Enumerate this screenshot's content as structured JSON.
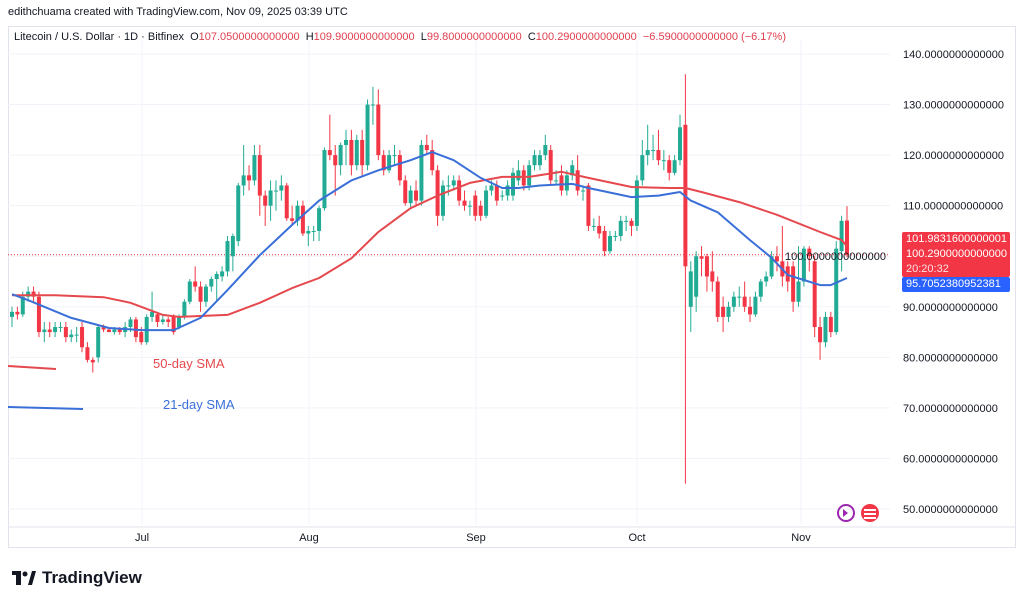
{
  "credit": "edithchuama created with TradingView.com, Nov 09, 2025 03:39 UTC",
  "legend": {
    "symbol": "Litecoin / U.S. Dollar · 1D · Bitfinex",
    "o_label": "O",
    "o": "107.0500000000000",
    "h_label": "H",
    "h": "109.9000000000000",
    "l_label": "L",
    "l": "99.8000000000000",
    "c_label": "C",
    "c": "100.2900000000000",
    "change": "−6.5900000000000 (−6.17%)"
  },
  "price_tags": {
    "sma50": "101.9831600000001",
    "last": "100.2900000000000",
    "countdown": "20:20:32",
    "sma21": "95.7052380952381"
  },
  "annotations": {
    "sma50": "50-day SMA",
    "sma21": "21-day SMA"
  },
  "footer": {
    "brand": "TradingView"
  },
  "colors": {
    "up": "#22ab94",
    "down": "#f23645",
    "sma50": "#e5484d",
    "sma21": "#3a6fd8",
    "grid": "#f0f3fa"
  },
  "chart_data": {
    "type": "candlestick",
    "ylim": [
      45,
      145
    ],
    "yticks": [
      "140.0000000000000",
      "130.0000000000000",
      "120.0000000000000",
      "110.0000000000000",
      "100.0000000000000",
      "90.0000000000000",
      "80.0000000000000",
      "70.0000000000000",
      "60.0000000000000",
      "50.0000000000000"
    ],
    "ytick_values": [
      140,
      130,
      120,
      110,
      100,
      90,
      80,
      70,
      60,
      50
    ],
    "xticks": [
      "Jul",
      "Aug",
      "Sep",
      "Oct",
      "Nov"
    ],
    "grid": true,
    "candles": [
      [
        88,
        90,
        86,
        89
      ],
      [
        89,
        90,
        87.5,
        88.5
      ],
      [
        88.5,
        93,
        88,
        92
      ],
      [
        92,
        94,
        91,
        93
      ],
      [
        93,
        94,
        91,
        92
      ],
      [
        92,
        93,
        84,
        85
      ],
      [
        85,
        87,
        83,
        85.5
      ],
      [
        85.5,
        87,
        84,
        85
      ],
      [
        85,
        87,
        84,
        86
      ],
      [
        86,
        87,
        85,
        86
      ],
      [
        86,
        87,
        83,
        84
      ],
      [
        84,
        85.5,
        83,
        84.5
      ],
      [
        84.5,
        86,
        83,
        84.5
      ],
      [
        86,
        87,
        81,
        82
      ],
      [
        82,
        83,
        79,
        79.5
      ],
      [
        79.5,
        80,
        77,
        79
      ],
      [
        80,
        86.5,
        79,
        86
      ],
      [
        86,
        86.5,
        85,
        85.5
      ],
      [
        85.5,
        86,
        85,
        85
      ],
      [
        85,
        86,
        84.5,
        85.5
      ],
      [
        85.5,
        86,
        84.5,
        85
      ],
      [
        85,
        87,
        84,
        86
      ],
      [
        86,
        88,
        85,
        87.5
      ],
      [
        87.5,
        88,
        83,
        84
      ],
      [
        85,
        86,
        82.5,
        83
      ],
      [
        83,
        88.5,
        82.5,
        88
      ],
      [
        88,
        93,
        87,
        89
      ],
      [
        88.5,
        89,
        86,
        87
      ],
      [
        87,
        88.5,
        86.5,
        87.5
      ],
      [
        87.5,
        88,
        86,
        87
      ],
      [
        88,
        88.5,
        84.5,
        85
      ],
      [
        86,
        88.5,
        85.5,
        88
      ],
      [
        88,
        91.5,
        87.5,
        91
      ],
      [
        91,
        95.5,
        90.5,
        95
      ],
      [
        95,
        98,
        93,
        94
      ],
      [
        94,
        95,
        89,
        91
      ],
      [
        91,
        94.5,
        90,
        94
      ],
      [
        94,
        96,
        93,
        95.5
      ],
      [
        95.5,
        97,
        91,
        96.5
      ],
      [
        96,
        98,
        95,
        97
      ],
      [
        97,
        104,
        96,
        103
      ],
      [
        100,
        104.5,
        97,
        104
      ],
      [
        103,
        114.5,
        102,
        114
      ],
      [
        114,
        122,
        112,
        116
      ],
      [
        116,
        118,
        113,
        115
      ],
      [
        115,
        122,
        114,
        120
      ],
      [
        120,
        122,
        108,
        112
      ],
      [
        112,
        113,
        106,
        110
      ],
      [
        110,
        115,
        107,
        113
      ],
      [
        113,
        115,
        109,
        113
      ],
      [
        113,
        116,
        111,
        114
      ],
      [
        114,
        114.5,
        107,
        107.5
      ],
      [
        107.5,
        110,
        106,
        107
      ],
      [
        107,
        111,
        106,
        110
      ],
      [
        110,
        111,
        104,
        104.5
      ],
      [
        104.5,
        106,
        102,
        105
      ],
      [
        105,
        106,
        103,
        105
      ],
      [
        105,
        110,
        103,
        109.5
      ],
      [
        109.5,
        121.5,
        109,
        121
      ],
      [
        121,
        128,
        119,
        120
      ],
      [
        120,
        122,
        112,
        118
      ],
      [
        118,
        122.5,
        116,
        122
      ],
      [
        122,
        125,
        118,
        123
      ],
      [
        123,
        125,
        116,
        118
      ],
      [
        118,
        124,
        117,
        123
      ],
      [
        123,
        125,
        116,
        118
      ],
      [
        118,
        131,
        117,
        130
      ],
      [
        130,
        133.5,
        126,
        130
      ],
      [
        130,
        133,
        119,
        120
      ],
      [
        120,
        121,
        116,
        117
      ],
      [
        117,
        121,
        116.5,
        120
      ],
      [
        120,
        122,
        118,
        120
      ],
      [
        120,
        121,
        114,
        115
      ],
      [
        115,
        116,
        110,
        110.5
      ],
      [
        110.5,
        114,
        109.5,
        113
      ],
      [
        113,
        115,
        110,
        111
      ],
      [
        111,
        123,
        110,
        122
      ],
      [
        122,
        124,
        120,
        121
      ],
      [
        121,
        123,
        116,
        117
      ],
      [
        117,
        118,
        106,
        108
      ],
      [
        108,
        115,
        107,
        114
      ],
      [
        114,
        116,
        112,
        114
      ],
      [
        114,
        116,
        113,
        115
      ],
      [
        115,
        116,
        110,
        111
      ],
      [
        111,
        113,
        109,
        110
      ],
      [
        110,
        111,
        108,
        110
      ],
      [
        112,
        113,
        107,
        108
      ],
      [
        110,
        111,
        107,
        108
      ],
      [
        108,
        114,
        107.5,
        113
      ],
      [
        113,
        115,
        112,
        114
      ],
      [
        114,
        115,
        110,
        111
      ],
      [
        112,
        113,
        111,
        112
      ],
      [
        112,
        115,
        111,
        114
      ],
      [
        112,
        117.5,
        111,
        116.5
      ],
      [
        115,
        119,
        114,
        117
      ],
      [
        117,
        118,
        113,
        114
      ],
      [
        114,
        119,
        113,
        118
      ],
      [
        118,
        121,
        117,
        120
      ],
      [
        118,
        121,
        117,
        120
      ],
      [
        120,
        124,
        119,
        122
      ],
      [
        121,
        122,
        114,
        115
      ],
      [
        115,
        117,
        114,
        115
      ],
      [
        116,
        118,
        112,
        113
      ],
      [
        113,
        117,
        112,
        116
      ],
      [
        116,
        119,
        115,
        118
      ],
      [
        117,
        120,
        112,
        113
      ],
      [
        113,
        114,
        111,
        113
      ],
      [
        114,
        114.5,
        105,
        106
      ],
      [
        106,
        107.5,
        105,
        106
      ],
      [
        106,
        108,
        103.5,
        104.5
      ],
      [
        105,
        106,
        100,
        101
      ],
      [
        101,
        105,
        100.5,
        104
      ],
      [
        104,
        105,
        103,
        104
      ],
      [
        104,
        108,
        103,
        107
      ],
      [
        107,
        108,
        105,
        107
      ],
      [
        107,
        107.5,
        104,
        106
      ],
      [
        106,
        116,
        105,
        115
      ],
      [
        115,
        123,
        114,
        120
      ],
      [
        120,
        126,
        118,
        121
      ],
      [
        121,
        124,
        119,
        121
      ],
      [
        121,
        125,
        118,
        119
      ],
      [
        119,
        121,
        117,
        119
      ],
      [
        119,
        120,
        115,
        116.5
      ],
      [
        116.5,
        120,
        116,
        119
      ],
      [
        119,
        128,
        118,
        125.5
      ],
      [
        126,
        136,
        55,
        98
      ],
      [
        90,
        99,
        85,
        97
      ],
      [
        92,
        101,
        89,
        100
      ],
      [
        100,
        102,
        96,
        99.5
      ],
      [
        100,
        100.5,
        93,
        96
      ],
      [
        97,
        101,
        93,
        95
      ],
      [
        95,
        96,
        87,
        88
      ],
      [
        90,
        92,
        85,
        88
      ],
      [
        88,
        91,
        87,
        90
      ],
      [
        90,
        93,
        89,
        92
      ],
      [
        92,
        94,
        90,
        92
      ],
      [
        92,
        95,
        89,
        90
      ],
      [
        90,
        92,
        87,
        88.5
      ],
      [
        88.5,
        93,
        88,
        92
      ],
      [
        92,
        95.5,
        91,
        95
      ],
      [
        95,
        97,
        94,
        96
      ],
      [
        96,
        101,
        95.5,
        100
      ],
      [
        100,
        102,
        97,
        99
      ],
      [
        99,
        106,
        94,
        96
      ],
      [
        98,
        99,
        93,
        95
      ],
      [
        98,
        99,
        89,
        91
      ],
      [
        91,
        102,
        90,
        95
      ],
      [
        95,
        102,
        94,
        101.5
      ],
      [
        101.5,
        102,
        97,
        100
      ],
      [
        99,
        100,
        84,
        86
      ],
      [
        86,
        88,
        79.5,
        83
      ],
      [
        83,
        89,
        82,
        88
      ],
      [
        88,
        89,
        84,
        85
      ],
      [
        85,
        103,
        84.5,
        101.5
      ],
      [
        101,
        108,
        97,
        107
      ],
      [
        107.05,
        109.9,
        99.8,
        100.29
      ]
    ],
    "series": [
      {
        "name": "50-day SMA",
        "points": [
          [
            0,
            92.3
          ],
          [
            8,
            92.3
          ],
          [
            17,
            91.9
          ],
          [
            22,
            90.8
          ],
          [
            28,
            88.4
          ],
          [
            31,
            88
          ],
          [
            40,
            88.4
          ],
          [
            46,
            90.8
          ],
          [
            52,
            93.7
          ],
          [
            57,
            95.7
          ],
          [
            63,
            99.6
          ],
          [
            68,
            104.8
          ],
          [
            74,
            109.5
          ],
          [
            79,
            112
          ],
          [
            85,
            114.5
          ],
          [
            91,
            115.7
          ],
          [
            96,
            115.7
          ],
          [
            102,
            116.7
          ],
          [
            107,
            115.5
          ],
          [
            115,
            113.7
          ],
          [
            122,
            113.5
          ],
          [
            125,
            113.5
          ],
          [
            128,
            112.7
          ],
          [
            135,
            110.7
          ],
          [
            142,
            108.2
          ],
          [
            150,
            104.8
          ],
          [
            154,
            103.2
          ],
          [
            155,
            101.98
          ]
        ]
      },
      {
        "name": "21-day SMA",
        "points": [
          [
            0,
            92.5
          ],
          [
            3,
            91.3
          ],
          [
            11,
            87.8
          ],
          [
            18,
            85.8
          ],
          [
            24,
            85.4
          ],
          [
            30,
            85.4
          ],
          [
            35,
            87.8
          ],
          [
            40,
            93.3
          ],
          [
            46,
            100.2
          ],
          [
            52,
            106.2
          ],
          [
            57,
            111
          ],
          [
            63,
            115
          ],
          [
            68,
            117
          ],
          [
            74,
            119
          ],
          [
            78,
            120.6
          ],
          [
            82,
            119
          ],
          [
            87,
            115.5
          ],
          [
            91,
            113.5
          ],
          [
            94,
            113.5
          ],
          [
            98,
            114
          ],
          [
            104,
            114.3
          ],
          [
            107,
            113.5
          ],
          [
            115,
            111.7
          ],
          [
            120,
            112
          ],
          [
            124,
            112.7
          ],
          [
            126,
            111
          ],
          [
            131,
            108.7
          ],
          [
            137,
            103.2
          ],
          [
            141,
            99.7
          ],
          [
            144,
            96.3
          ],
          [
            147,
            95.3
          ],
          [
            150,
            94.3
          ],
          [
            152,
            94.3
          ],
          [
            155,
            95.7
          ]
        ]
      }
    ],
    "last_price": 100.29
  }
}
